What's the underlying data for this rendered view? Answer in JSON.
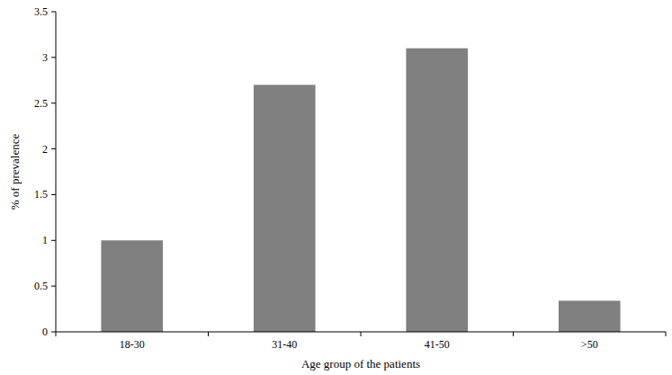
{
  "chart_data": {
    "type": "bar",
    "x_label": "Age group of the patients",
    "y_label": "% of prevalence",
    "categories": [
      "18-30",
      "31-40",
      "41-50",
      ">50"
    ],
    "values": [
      1.0,
      2.7,
      3.1,
      0.34
    ],
    "color": "#808080",
    "ylim": [
      0,
      3.5
    ],
    "yticks": [
      0,
      0.5,
      1,
      1.5,
      2,
      2.5,
      3,
      3.5
    ],
    "grid": false
  }
}
